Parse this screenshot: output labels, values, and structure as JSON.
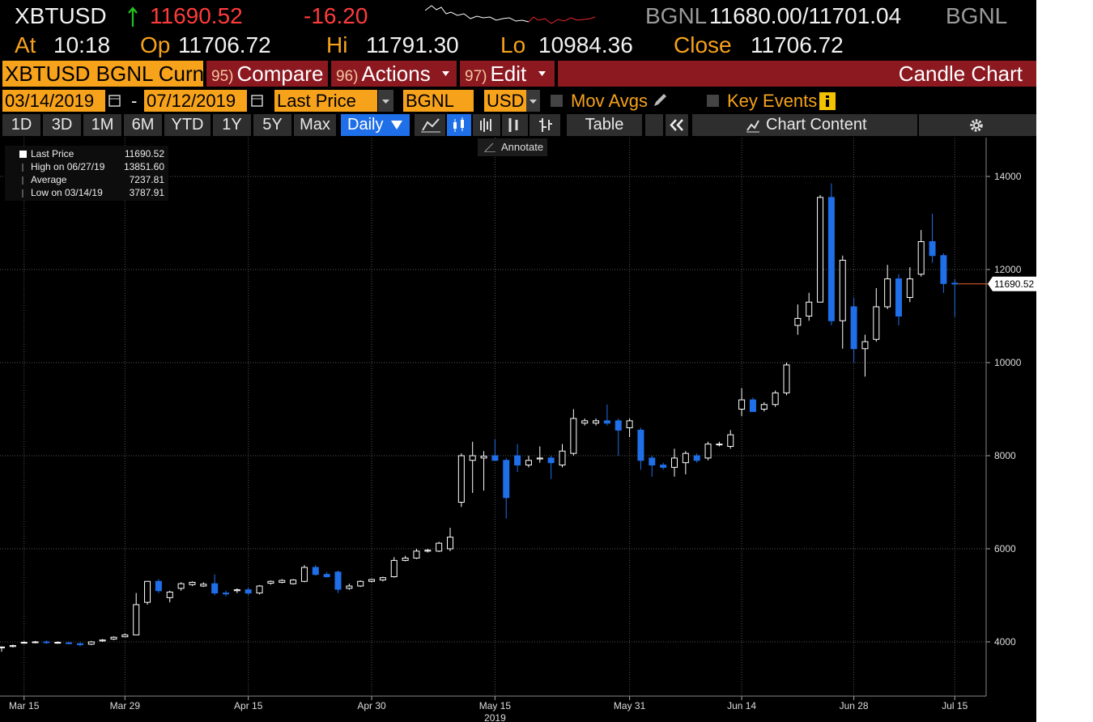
{
  "header": {
    "symbol": "XBTUSD",
    "price": "11690.52",
    "change": "-16.20",
    "source1": "BGNL",
    "bid_ask": "11680.00/11701.04",
    "source2": "BGNL",
    "stats": [
      {
        "label": "At",
        "value": "10:18"
      },
      {
        "label": "Op",
        "value": "11706.72"
      },
      {
        "label": "Hi",
        "value": "11791.30"
      },
      {
        "label": "Lo",
        "value": "10984.36"
      },
      {
        "label": "Close",
        "value": "11706.72"
      }
    ]
  },
  "toolbar": {
    "security": "XBTUSD BGNL Curnc",
    "menus": [
      {
        "num": "95)",
        "label": "Compare"
      },
      {
        "num": "96)",
        "label": "Actions"
      },
      {
        "num": "97)",
        "label": "Edit"
      }
    ],
    "chart_type": "Candle Chart"
  },
  "settings": {
    "start": "03/14/2019",
    "dash": "-",
    "end": "07/12/2019",
    "field": "Last Price",
    "source": "BGNL",
    "currency": "USD",
    "mov_avgs": "Mov Avgs",
    "key_events": "Key Events"
  },
  "ranges": [
    "1D",
    "3D",
    "1M",
    "6M",
    "YTD",
    "1Y",
    "5Y",
    "Max"
  ],
  "period": "Daily",
  "table": "Table",
  "chart_content": "Chart Content",
  "annotate": "Annotate",
  "chart_data": {
    "type": "candlestick",
    "up_color": "#ffffff",
    "down_color": "#1f6fe8",
    "categories": [
      null,
      null,
      "Mar 15",
      null,
      null,
      null,
      null,
      null,
      null,
      null,
      null,
      "Mar 29",
      null,
      null,
      null,
      null,
      null,
      null,
      null,
      null,
      null,
      null,
      "Apr 15",
      null,
      null,
      null,
      null,
      null,
      null,
      null,
      null,
      null,
      null,
      "Apr 30",
      null,
      null,
      null,
      null,
      null,
      null,
      null,
      null,
      null,
      null,
      "May 15",
      null,
      null,
      null,
      null,
      null,
      null,
      null,
      null,
      null,
      null,
      null,
      "May 31",
      null,
      null,
      null,
      null,
      null,
      null,
      null,
      null,
      null,
      "Jun 14",
      null,
      null,
      null,
      null,
      null,
      null,
      null,
      null,
      null,
      "Jun 28",
      null,
      null,
      null,
      null,
      null,
      null,
      null,
      null,
      "Jul 15"
    ],
    "x_year_label": "2019",
    "x_year_index": 44,
    "open": [
      3880,
      3900,
      3980,
      3990,
      4000,
      3980,
      3980,
      3960,
      3950,
      4020,
      4060,
      4110,
      4150,
      4850,
      5300,
      4950,
      5150,
      5230,
      5200,
      5250,
      5050,
      5100,
      5120,
      5050,
      5260,
      5280,
      5250,
      5300,
      5600,
      5450,
      5500,
      5150,
      5200,
      5300,
      5330,
      5400,
      5750,
      5800,
      5950,
      5950,
      6000,
      7000,
      7900,
      7950,
      8000,
      7900,
      8000,
      7800,
      7930,
      7950,
      7800,
      8050,
      8700,
      8700,
      8750,
      8750,
      8600,
      8550,
      7950,
      7800,
      7750,
      7850,
      8000,
      7950,
      8250,
      8200,
      9000,
      9200,
      9000,
      9100,
      9350,
      10800,
      11000,
      11300,
      13550,
      10900,
      11200,
      10300,
      10500,
      11200,
      11800,
      11400,
      11900,
      12600,
      12300,
      11706.72
    ],
    "high": [
      3900,
      3940,
      4010,
      4020,
      4030,
      4010,
      4000,
      3990,
      4020,
      4060,
      4120,
      4180,
      5050,
      5300,
      5350,
      5100,
      5280,
      5300,
      5280,
      5450,
      5100,
      5150,
      5160,
      5220,
      5320,
      5350,
      5350,
      5650,
      5650,
      5500,
      5530,
      5250,
      5320,
      5360,
      5400,
      5820,
      5850,
      6000,
      6000,
      6150,
      6450,
      8050,
      8300,
      8100,
      8350,
      7950,
      8250,
      8000,
      8200,
      8000,
      8250,
      9000,
      8800,
      8800,
      9100,
      8800,
      8800,
      8600,
      8000,
      7850,
      8150,
      8100,
      8050,
      8300,
      8300,
      8550,
      9450,
      9250,
      9150,
      9400,
      10000,
      11250,
      11500,
      13600,
      13851.6,
      12300,
      11400,
      10600,
      11600,
      12100,
      11900,
      12050,
      12850,
      13200,
      12350,
      11791.3
    ],
    "low": [
      3787.91,
      3880,
      3960,
      3970,
      3960,
      3960,
      3950,
      3900,
      3930,
      4000,
      4040,
      4100,
      4150,
      4800,
      5050,
      4850,
      5100,
      5200,
      5180,
      5000,
      4980,
      5050,
      5000,
      5020,
      5230,
      5260,
      5230,
      5280,
      5420,
      5380,
      5050,
      5120,
      5180,
      5280,
      5300,
      5380,
      5730,
      5780,
      5920,
      5930,
      5950,
      6900,
      7200,
      7250,
      7900,
      6650,
      7650,
      7750,
      7850,
      7500,
      7750,
      8000,
      8650,
      8650,
      8650,
      8000,
      8400,
      7700,
      7550,
      7700,
      7550,
      7600,
      7850,
      7900,
      8200,
      8150,
      8850,
      8950,
      8950,
      9050,
      9300,
      10600,
      10900,
      11300,
      10800,
      10300,
      10000,
      9700,
      10450,
      11150,
      10800,
      11300,
      11850,
      12150,
      11500,
      10984.36
    ],
    "close": [
      3890,
      3920,
      3990,
      4000,
      3990,
      3990,
      3970,
      3940,
      4000,
      4040,
      4100,
      4150,
      4800,
      5300,
      5100,
      5070,
      5250,
      5280,
      5240,
      5050,
      5030,
      5120,
      5050,
      5200,
      5300,
      5320,
      5330,
      5600,
      5450,
      5400,
      5130,
      5200,
      5300,
      5340,
      5380,
      5750,
      5800,
      5950,
      5970,
      6120,
      6250,
      8000,
      8000,
      7990,
      7900,
      7100,
      7800,
      7900,
      7950,
      7850,
      8100,
      8800,
      8750,
      8750,
      8700,
      8550,
      8750,
      7900,
      7800,
      7750,
      7950,
      8050,
      7900,
      8250,
      8250,
      8450,
      9200,
      8950,
      9100,
      9350,
      9950,
      10950,
      11300,
      13550,
      10900,
      12200,
      10300,
      10450,
      11200,
      11800,
      11000,
      11800,
      12600,
      12300,
      11700,
      11690.52
    ],
    "ylim": [
      2835,
      14835
    ],
    "yticks": [
      4000,
      6000,
      8000,
      10000,
      12000,
      14000
    ],
    "grid": true,
    "legend": [
      {
        "label": "Last Price",
        "value": "11690.52"
      },
      {
        "label": "High on 06/27/19",
        "value": "13851.60"
      },
      {
        "label": "Average",
        "value": "7237.81"
      },
      {
        "label": "Low on 03/14/19",
        "value": "3787.91"
      }
    ]
  }
}
